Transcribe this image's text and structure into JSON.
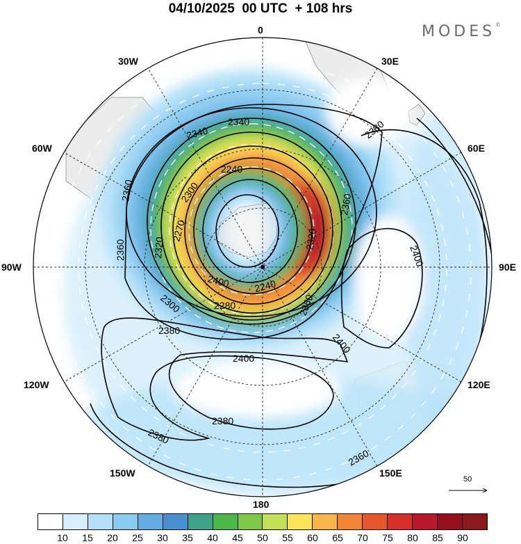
{
  "title": "04/10/2025  00 UTC  + 108 hrs",
  "logo": "MODES",
  "logo_mark": "©",
  "longitude_labels": {
    "top": "0",
    "nw30": "30W",
    "ne30": "30E",
    "w60": "60W",
    "e60": "60E",
    "w90": "90W",
    "e90": "90E",
    "w120": "120W",
    "e120": "120E",
    "w150": "150W",
    "e150": "150E",
    "bottom": "180"
  },
  "contour_labels": {
    "c2340a": "2340",
    "c2340b": "2340",
    "c2380a": "2380",
    "c2240a": "2240",
    "c2360a": "2360",
    "c2360b": "2360",
    "c2360c": "2360",
    "c2300a": "2300",
    "c2270a": "2270",
    "c2320a": "2320",
    "c2320b": "2320",
    "c2300b": "2300",
    "c2280a": "2280",
    "c2240b": "2240",
    "c2400a": "2400",
    "c2400b": "2400",
    "c2400c": "2400",
    "c2400d": "2400",
    "c2380b": "2380",
    "c2380c": "2380",
    "c2380d": "2380",
    "c2360d": "2360",
    "c2360e": "2360",
    "c2360f": "2360"
  },
  "reference_vector": "50",
  "colorbar": {
    "labels": [
      "10",
      "15",
      "20",
      "25",
      "30",
      "35",
      "40",
      "45",
      "50",
      "55",
      "60",
      "65",
      "70",
      "75",
      "80",
      "85",
      "90"
    ],
    "colors": [
      "#ffffff",
      "#d6effc",
      "#b4e1f8",
      "#8ccbf0",
      "#64aee2",
      "#4a8fd0",
      "#3fa08c",
      "#4cb84c",
      "#7dc84a",
      "#c2df55",
      "#fbe35a",
      "#f9b64b",
      "#f48537",
      "#e8572c",
      "#d63028",
      "#b9192a",
      "#96101c",
      "#8a1a1a"
    ]
  }
}
